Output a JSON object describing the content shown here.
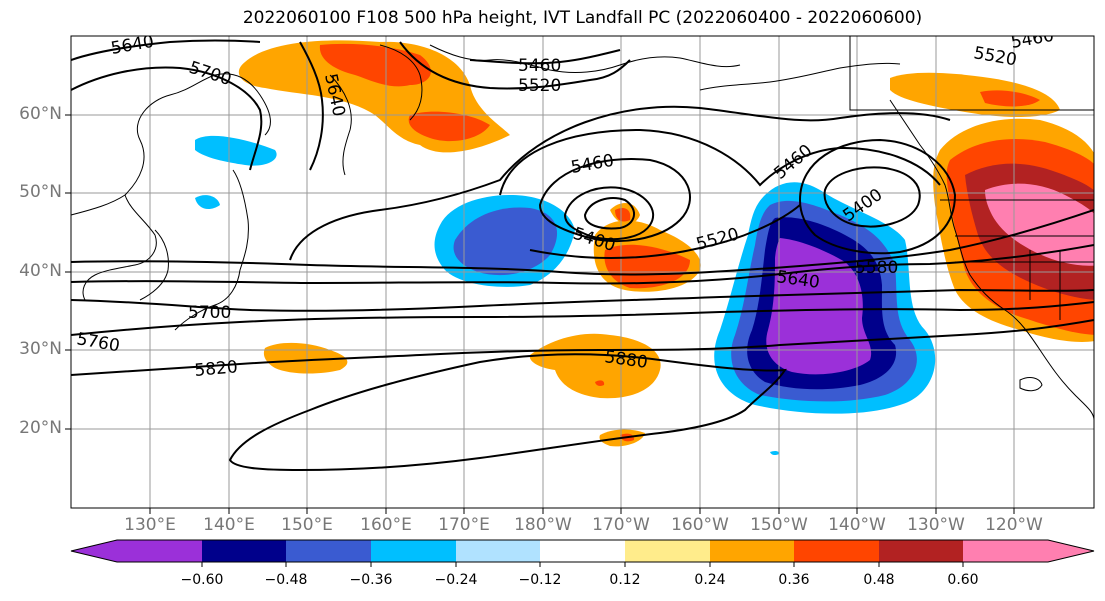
{
  "title": "2022060100 F108 500 hPa height, IVT Landfall PC (2022060400 - 2022060600)",
  "lat_labels": [
    "60°N",
    "50°N",
    "40°N",
    "30°N",
    "20°N"
  ],
  "lon_labels": [
    "130°E",
    "140°E",
    "150°E",
    "160°E",
    "170°E",
    "180°W",
    "170°W",
    "160°W",
    "150°W",
    "140°W",
    "130°W",
    "120°W"
  ],
  "colorbar": {
    "ticks": [
      "−0.60",
      "−0.48",
      "−0.36",
      "−0.24",
      "−0.12",
      "0.12",
      "0.24",
      "0.36",
      "0.48",
      "0.60"
    ],
    "colors": [
      "#9b30d9",
      "#00008b",
      "#3a5bd1",
      "#00bfff",
      "#b0e2ff",
      "#ffffff",
      "#ffec8b",
      "#ffa500",
      "#ff4500",
      "#b22222",
      "#ff7fb0"
    ]
  },
  "contour_labels": [
    "5640",
    "5700",
    "5640",
    "5460",
    "5520",
    "5460",
    "5520",
    "5460",
    "5400",
    "5460",
    "5400",
    "5520",
    "5580",
    "5640",
    "5700",
    "5760",
    "5820",
    "5880"
  ],
  "colors": {
    "contour": "#000000",
    "grid": "#999999",
    "coast": "#000000"
  }
}
